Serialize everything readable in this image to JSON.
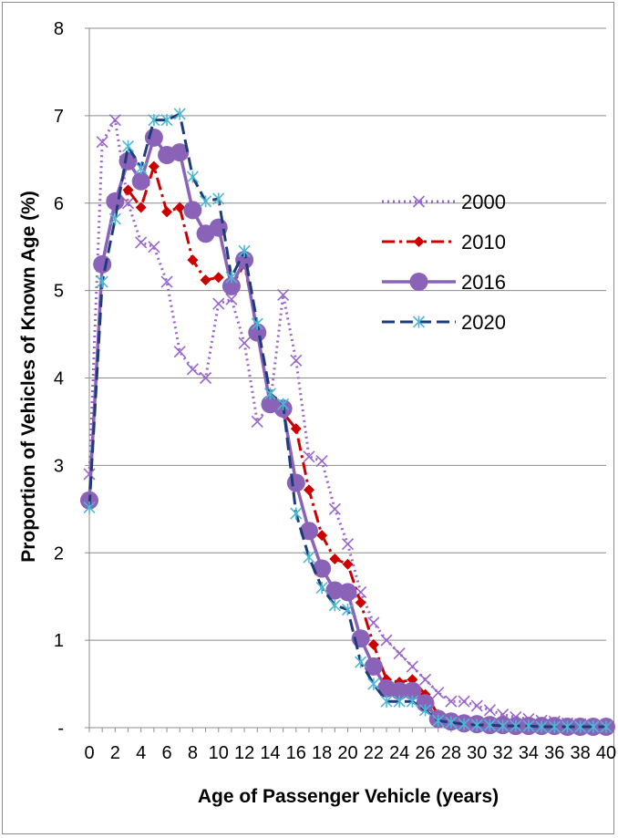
{
  "chart_data": {
    "type": "line",
    "title": "",
    "xlabel": "Age of Passenger Vehicle (years)",
    "ylabel": "Proportion of Vehicles of Known Age (%)",
    "xlim": [
      0,
      40
    ],
    "ylim": [
      0,
      8
    ],
    "x_ticks": [
      "0",
      "2",
      "4",
      "6",
      "8",
      "10",
      "12",
      "14",
      "16",
      "18",
      "20",
      "22",
      "24",
      "26",
      "28",
      "30",
      "32",
      "34",
      "36",
      "38",
      "40"
    ],
    "y_ticks": [
      "-",
      "1",
      "2",
      "3",
      "4",
      "5",
      "6",
      "7",
      "8"
    ],
    "grid": "horizontal",
    "legend_position": "right",
    "x": [
      0,
      1,
      2,
      3,
      4,
      5,
      6,
      7,
      8,
      9,
      10,
      11,
      12,
      13,
      14,
      15,
      16,
      17,
      18,
      19,
      20,
      21,
      22,
      23,
      24,
      25,
      26,
      27,
      28,
      29,
      30,
      31,
      32,
      33,
      34,
      35,
      36,
      37,
      38,
      39,
      40
    ],
    "series": [
      {
        "name": "2000",
        "color": "#9966cc",
        "style": "dotted",
        "marker": "x",
        "values": [
          2.9,
          6.7,
          6.95,
          6.0,
          5.55,
          5.5,
          5.1,
          4.3,
          4.1,
          4.0,
          4.85,
          4.9,
          4.4,
          3.5,
          3.7,
          4.95,
          4.2,
          3.1,
          3.05,
          2.5,
          2.1,
          1.55,
          1.2,
          1.0,
          0.85,
          0.7,
          0.55,
          0.4,
          0.3,
          0.3,
          0.25,
          0.2,
          0.15,
          0.12,
          0.1,
          0.08,
          0.07,
          0.05,
          0.04,
          0.03,
          0.02
        ]
      },
      {
        "name": "2010",
        "color": "#cc0000",
        "style": "dashdot",
        "marker": "diamond",
        "values": [
          2.6,
          5.3,
          6.0,
          6.15,
          5.95,
          6.42,
          5.9,
          5.95,
          5.35,
          5.12,
          5.15,
          5.05,
          5.3,
          4.55,
          3.7,
          3.6,
          3.42,
          2.72,
          2.2,
          1.93,
          1.87,
          1.43,
          0.95,
          0.55,
          0.52,
          0.55,
          0.38,
          0.15,
          0.1,
          0.08,
          0.06,
          0.05,
          0.04,
          0.03,
          0.03,
          0.02,
          0.02,
          0.02,
          0.01,
          0.01,
          0.01
        ]
      },
      {
        "name": "2016",
        "color": "#8a63b8",
        "style": "solid",
        "marker": "circle",
        "values": [
          2.6,
          5.3,
          6.02,
          6.48,
          6.25,
          6.75,
          6.55,
          6.58,
          5.92,
          5.65,
          5.72,
          5.05,
          5.35,
          4.52,
          3.7,
          3.65,
          2.8,
          2.25,
          1.82,
          1.57,
          1.55,
          1.02,
          0.7,
          0.45,
          0.42,
          0.42,
          0.28,
          0.1,
          0.07,
          0.05,
          0.04,
          0.03,
          0.03,
          0.02,
          0.02,
          0.02,
          0.02,
          0.01,
          0.01,
          0.01,
          0.01
        ]
      },
      {
        "name": "2020",
        "color": "#1f3c7a",
        "style": "dashed",
        "marker": "asterisk",
        "values": [
          2.52,
          5.1,
          5.82,
          6.65,
          6.4,
          6.95,
          6.95,
          7.02,
          6.3,
          6.02,
          6.05,
          5.15,
          5.45,
          4.62,
          3.82,
          3.7,
          2.45,
          1.95,
          1.6,
          1.4,
          1.35,
          0.75,
          0.5,
          0.3,
          0.3,
          0.3,
          0.2,
          0.08,
          0.06,
          0.04,
          0.03,
          0.03,
          0.02,
          0.02,
          0.02,
          0.01,
          0.01,
          0.01,
          0.01,
          0.01,
          0.01
        ]
      }
    ]
  }
}
